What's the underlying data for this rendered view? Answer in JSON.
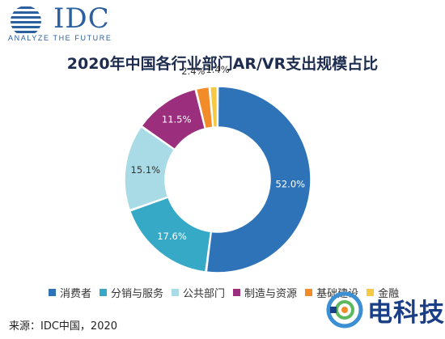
{
  "logo": {
    "text": "IDC",
    "tagline": "ANALYZE THE FUTURE"
  },
  "source": "来源：IDC中国，2020",
  "watermark": {
    "text": "电科技"
  },
  "chart_data": {
    "type": "pie",
    "donut": true,
    "title": "2020年中国各行业部门AR/VR支出规模占比",
    "legend_position": "bottom",
    "categories": [
      "消费者",
      "分销与服务",
      "公共部门",
      "制造与资源",
      "基础建设",
      "金融"
    ],
    "values": [
      52.0,
      17.6,
      15.1,
      11.5,
      2.4,
      1.4
    ],
    "labels": [
      "52.0%",
      "17.6%",
      "15.1%",
      "11.5%",
      "2.4%",
      "1.4%"
    ],
    "colors": [
      "#2e73b8",
      "#36a9c6",
      "#a8dbe6",
      "#9b2f7d",
      "#f28c28",
      "#f6c944"
    ]
  }
}
